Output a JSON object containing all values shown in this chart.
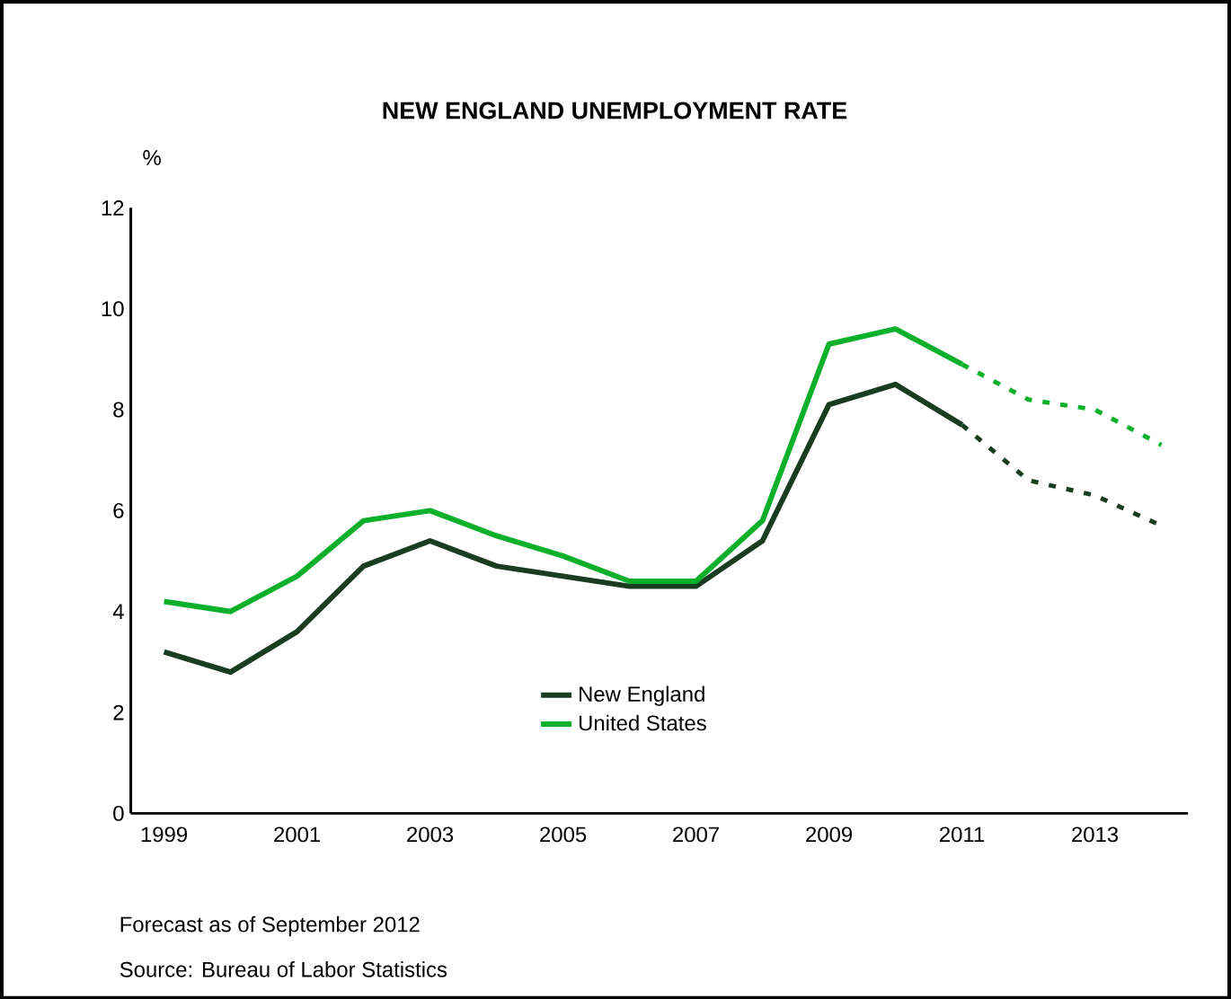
{
  "chart_data": {
    "type": "line",
    "title": "NEW ENGLAND UNEMPLOYMENT RATE",
    "ylabel": "%",
    "x": [
      1999,
      2000,
      2001,
      2002,
      2003,
      2004,
      2005,
      2006,
      2007,
      2008,
      2009,
      2010,
      2011
    ],
    "series": [
      {
        "name": "New England",
        "color": "#1a3d22",
        "values": [
          3.2,
          2.8,
          3.6,
          4.9,
          5.4,
          4.9,
          4.7,
          4.5,
          4.5,
          5.4,
          8.1,
          8.5,
          7.7
        ]
      },
      {
        "name": "United States",
        "color": "#0db02b",
        "values": [
          4.2,
          4.0,
          4.7,
          5.8,
          6.0,
          5.5,
          5.1,
          4.6,
          4.6,
          5.8,
          9.3,
          9.6,
          8.9
        ]
      },
      {
        "color": "#1a3d22",
        "line_style": "dashed",
        "x": [
          2011,
          2012,
          2013,
          2014
        ],
        "values": [
          7.7,
          6.6,
          6.3,
          5.7
        ]
      },
      {
        "color": "#0db02b",
        "line_style": "dashed",
        "x": [
          2011,
          2012,
          2013,
          2014
        ],
        "values": [
          8.9,
          8.2,
          8.0,
          7.3
        ]
      }
    ],
    "xlim": [
      1998.5,
      2014.4
    ],
    "xticks": [
      1999,
      2001,
      2003,
      2005,
      2007,
      2009,
      2011,
      2013
    ],
    "ylim": [
      0,
      12
    ],
    "yticks": [
      0,
      2,
      4,
      6,
      8,
      10,
      12
    ],
    "grid": false,
    "legend": "bottom",
    "marker": "none",
    "line_style": "solid",
    "annotations": [
      "Forecast as of September 2012",
      "Source: Bureau of Labor Statistics"
    ]
  }
}
